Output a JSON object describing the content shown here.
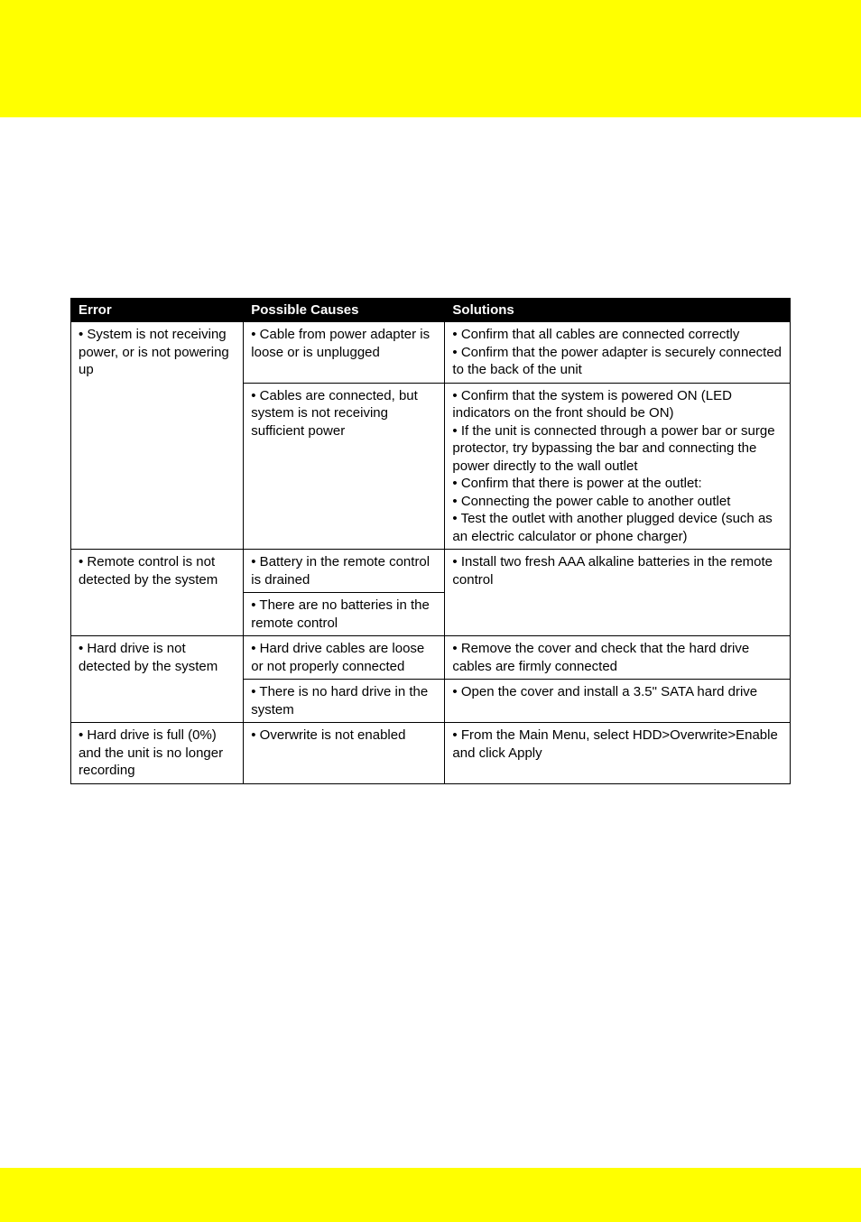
{
  "banner_color": "#ffff00",
  "page_bg": "#ffffff",
  "table": {
    "header_bg": "#000000",
    "header_text_color": "#ffffff",
    "border_color": "#000000",
    "font_size": 15,
    "columns": [
      {
        "label": "Error",
        "width_pct": 24
      },
      {
        "label": "Possible Causes",
        "width_pct": 28
      },
      {
        "label": "Solutions",
        "width_pct": 48
      }
    ],
    "rows": [
      {
        "error": "• System is not receiving power, or is not powering up",
        "cause": "• Cable from power adapter is loose or is unplugged",
        "solution": "• Confirm that all cables are connected correctly\n• Confirm that the power adapter is securely connected to the back of the unit",
        "error_rowspan": 2
      },
      {
        "cause": "• Cables are connected, but system is not receiving sufficient power",
        "solution": "• Confirm that the system is powered ON (LED indicators on the front should be ON)\n• If the unit is connected through a power bar or surge protector, try bypassing the bar and connecting the power directly to the wall outlet\n• Confirm that there is power at the outlet:\n• Connecting the power cable to another outlet\n• Test the outlet with another plugged device (such as an electric calculator or phone charger)"
      },
      {
        "error": "• Remote control is not detected by the system",
        "cause": "• Battery in the remote control is drained",
        "solution": "• Install two fresh AAA alkaline batteries in the remote control",
        "error_rowspan": 2,
        "solution_rowspan": 2
      },
      {
        "cause": "• There are no batteries in the remote control"
      },
      {
        "error": "• Hard drive is not detected by the system",
        "cause": "• Hard drive cables are loose or not properly connected",
        "solution": "• Remove the cover and check that the hard drive cables are firmly connected",
        "error_rowspan": 2
      },
      {
        "cause": "• There is no hard drive in the system",
        "solution": "• Open the cover and install a 3.5\" SATA hard drive"
      },
      {
        "error": "• Hard drive is full (0%) and the unit is no longer recording",
        "cause": "• Overwrite is not enabled",
        "solution": "• From the Main Menu, select HDD>Overwrite>Enable and click Apply"
      }
    ]
  }
}
